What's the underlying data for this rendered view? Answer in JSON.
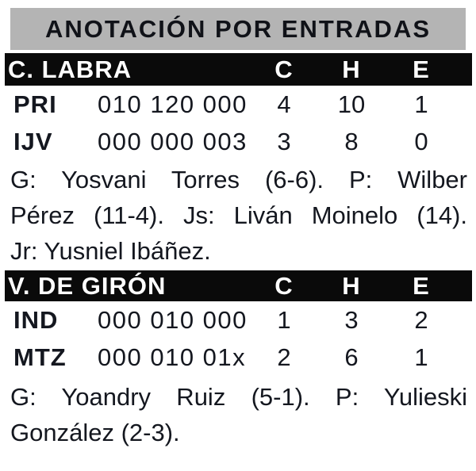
{
  "title": "ANOTACIÓN POR ENTRADAS",
  "column_headers": {
    "runs": "C",
    "hits": "H",
    "errors": "E"
  },
  "colors": {
    "page_bg": "#ffffff",
    "title_bar_bg": "#b4b4b4",
    "title_text": "#101218",
    "venue_bar_bg": "#0a0a0a",
    "venue_bar_text": "#ffffff",
    "body_text": "#14171f"
  },
  "sections": [
    {
      "venue": "C. LABRA",
      "rows": [
        {
          "team": "PRI",
          "linescore": "010 120 000",
          "runs": "4",
          "hits": "10",
          "errors": "1"
        },
        {
          "team": "IJV",
          "linescore": "000 000 003",
          "runs": "3",
          "hits": "8",
          "errors": "0"
        }
      ],
      "notes": [
        "G: Yosvani Torres (6-6). P: Wilber",
        "Pérez (11-4). Js: Liván Moinelo (14).",
        "Jr: Yusniel Ibáñez."
      ]
    },
    {
      "venue": "V. DE GIRÓN",
      "rows": [
        {
          "team": "IND",
          "linescore": "000 010 000",
          "runs": "1",
          "hits": "3",
          "errors": "2"
        },
        {
          "team": "MTZ",
          "linescore": "000 010 01x",
          "runs": "2",
          "hits": "6",
          "errors": "1"
        }
      ],
      "notes": [
        "G: Yoandry Ruiz (5-1). P: Yulieski",
        "González (2-3)."
      ]
    }
  ]
}
